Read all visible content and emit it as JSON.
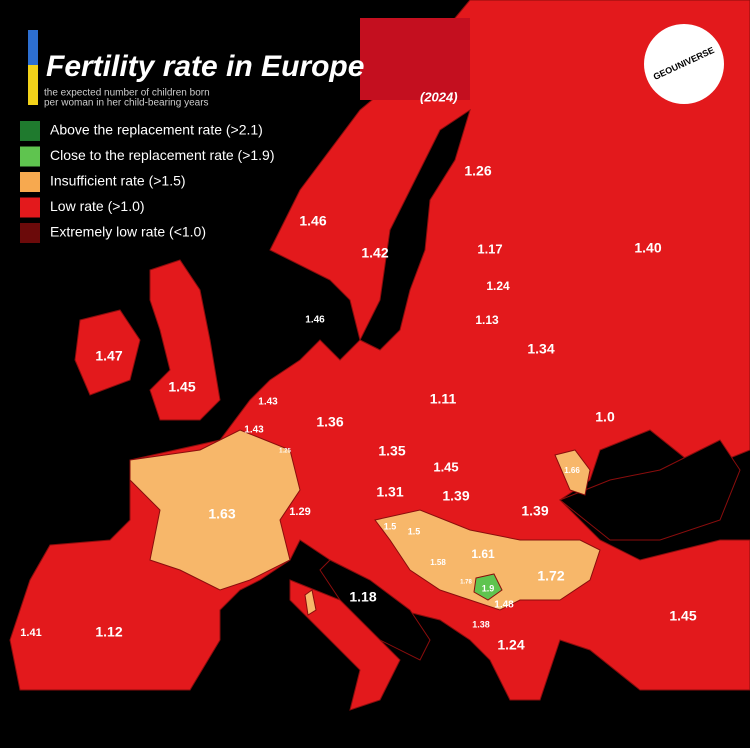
{
  "header": {
    "title": "Fertility rate in Europe",
    "subtitle_lines": [
      "the expected number of children born",
      "per woman in her child-bearing years"
    ],
    "year": "(2024)",
    "logo": "GEOUNIVERSE"
  },
  "legend": [
    {
      "label": "Above the replacement rate (>2.1)",
      "color": "#1f7a2e"
    },
    {
      "label": "Close to the replacement rate (>1.9)",
      "color": "#5fc44f"
    },
    {
      "label": "Insufficient rate (>1.5)",
      "color": "#f7a94f"
    },
    {
      "label": "Low rate (>1.0)",
      "color": "#e3191c"
    },
    {
      "label": "Extremely low rate (<1.0)",
      "color": "#6b0a0a"
    }
  ],
  "map_labels": [
    "1.26",
    "1.46",
    "1.42",
    "1.17",
    "1.40",
    "1.24",
    "1.46",
    "1.13",
    "1.47",
    "1.34",
    "1.45",
    "1.43",
    "1.11",
    "1.43",
    "1.36",
    "1.0",
    "1.25",
    "1.35",
    "1.45",
    "1.66",
    "1.31",
    "1.39",
    "1.63",
    "1.29",
    "1.39",
    "1.5",
    "1.5",
    "1.61",
    "1.58",
    "1.72",
    "1.9",
    "1.78",
    "1.18",
    "1.48",
    "1.45",
    "1.41",
    "1.12",
    "1.38",
    "1.24"
  ]
}
